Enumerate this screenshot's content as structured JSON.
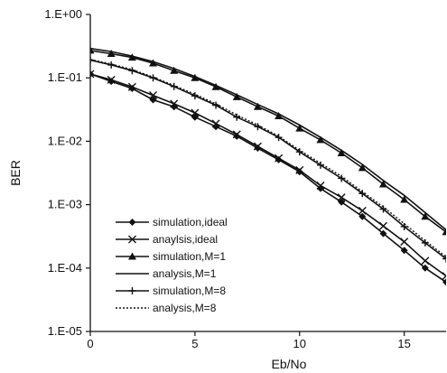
{
  "chart_data": {
    "type": "line",
    "title": "",
    "xlabel": "Eb/No",
    "ylabel": "BER",
    "x_scale": "linear",
    "y_scale": "log",
    "xlim": [
      0,
      17
    ],
    "ylim": [
      1e-05,
      1
    ],
    "x_ticks": [
      0,
      5,
      10,
      15
    ],
    "x_tick_labels": [
      "0",
      "5",
      "10",
      "15"
    ],
    "y_ticks": [
      1,
      0.1,
      0.01,
      0.001,
      0.0001,
      1e-05
    ],
    "y_tick_labels": [
      "1.E+00",
      "1.E-01",
      "1.E-02",
      "1.E-03",
      "1.E-04",
      "1.E-05"
    ],
    "grid": false,
    "legend_position": "bottom-left",
    "series": [
      {
        "name": "simulation,ideal",
        "style": "solid",
        "marker": "diamond",
        "x": [
          0,
          1,
          2,
          3,
          4,
          5,
          6,
          7,
          8,
          9,
          10,
          11,
          12,
          13,
          14,
          15,
          16,
          17
        ],
        "y": [
          0.115,
          0.088,
          0.068,
          0.045,
          0.035,
          0.024,
          0.017,
          0.012,
          0.0078,
          0.0051,
          0.0033,
          0.0018,
          0.0011,
          0.00065,
          0.00035,
          0.00019,
          0.0001,
          6e-05
        ]
      },
      {
        "name": "anaylsis,ideal",
        "style": "solid",
        "marker": "x",
        "x": [
          0,
          1,
          2,
          3,
          4,
          5,
          6,
          7,
          8,
          9,
          10,
          11,
          12,
          13,
          14,
          15,
          16,
          17
        ],
        "y": [
          0.115,
          0.093,
          0.072,
          0.053,
          0.039,
          0.028,
          0.019,
          0.0128,
          0.0083,
          0.0054,
          0.0035,
          0.002,
          0.0013,
          0.0008,
          0.00046,
          0.00026,
          0.00013,
          7.5e-05
        ]
      },
      {
        "name": "simulation,M=1",
        "style": "solid",
        "marker": "triangle",
        "x": [
          0,
          1,
          2,
          3,
          4,
          5,
          6,
          7,
          8,
          9,
          10,
          11,
          12,
          13,
          14,
          15,
          16,
          17
        ],
        "y": [
          0.27,
          0.24,
          0.21,
          0.17,
          0.13,
          0.1,
          0.072,
          0.05,
          0.035,
          0.025,
          0.016,
          0.0105,
          0.0065,
          0.0038,
          0.0021,
          0.0012,
          0.00065,
          0.00037
        ]
      },
      {
        "name": "analysis,M=1",
        "style": "solid",
        "marker": "none",
        "x": [
          0,
          1,
          2,
          3,
          4,
          5,
          6,
          7,
          8,
          9,
          10,
          11,
          12,
          13,
          14,
          15,
          16,
          17
        ],
        "y": [
          0.29,
          0.26,
          0.22,
          0.18,
          0.14,
          0.105,
          0.076,
          0.054,
          0.038,
          0.027,
          0.018,
          0.0115,
          0.0072,
          0.0043,
          0.0024,
          0.0014,
          0.00075,
          0.0004
        ]
      },
      {
        "name": "simulation,M=8",
        "style": "solid",
        "marker": "plus",
        "x": [
          0,
          1,
          2,
          3,
          4,
          5,
          6,
          7,
          8,
          9,
          10,
          11,
          12,
          13,
          14,
          15,
          16,
          17
        ],
        "y": [
          0.19,
          0.16,
          0.13,
          0.1,
          0.073,
          0.052,
          0.037,
          0.024,
          0.017,
          0.0115,
          0.0068,
          0.0042,
          0.0026,
          0.0015,
          0.00085,
          0.00045,
          0.00025,
          0.00014
        ]
      },
      {
        "name": "analysis,M=8",
        "style": "dotted",
        "marker": "none",
        "x": [
          0,
          1,
          2,
          3,
          4,
          5,
          6,
          7,
          8,
          9,
          10,
          11,
          12,
          13,
          14,
          15,
          16,
          17
        ],
        "y": [
          0.195,
          0.165,
          0.135,
          0.103,
          0.076,
          0.055,
          0.039,
          0.026,
          0.018,
          0.012,
          0.0072,
          0.0045,
          0.0028,
          0.0016,
          0.00092,
          0.0005,
          0.00027,
          0.00015
        ]
      }
    ]
  }
}
